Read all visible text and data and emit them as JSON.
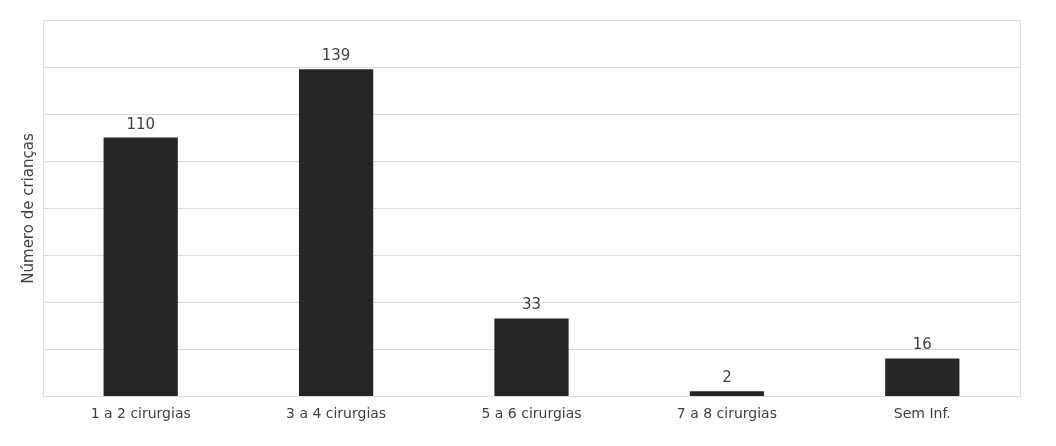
{
  "chart_data": {
    "type": "bar",
    "categories": [
      "1 a 2 cirurgias",
      "3 a 4 cirurgias",
      "5 a 6 cirurgias",
      "7 a 8 cirurgias",
      "Sem Inf."
    ],
    "values": [
      110,
      139,
      33,
      2,
      16
    ],
    "color": "#262626",
    "ylabel": "Número de crianças",
    "ylim": [
      0,
      160
    ],
    "yticks": [
      {
        "value": 0,
        "label": null
      },
      {
        "value": 20,
        "label": null
      },
      {
        "value": 40,
        "label": null
      },
      {
        "value": 60,
        "label": null
      },
      {
        "value": 80,
        "label": null
      },
      {
        "value": 100,
        "label": null
      },
      {
        "value": 120,
        "label": null
      },
      {
        "value": 140,
        "label": null
      },
      {
        "value": 160,
        "label": null
      }
    ],
    "tick_labels": "x",
    "grid": "y",
    "data_labels": true
  }
}
